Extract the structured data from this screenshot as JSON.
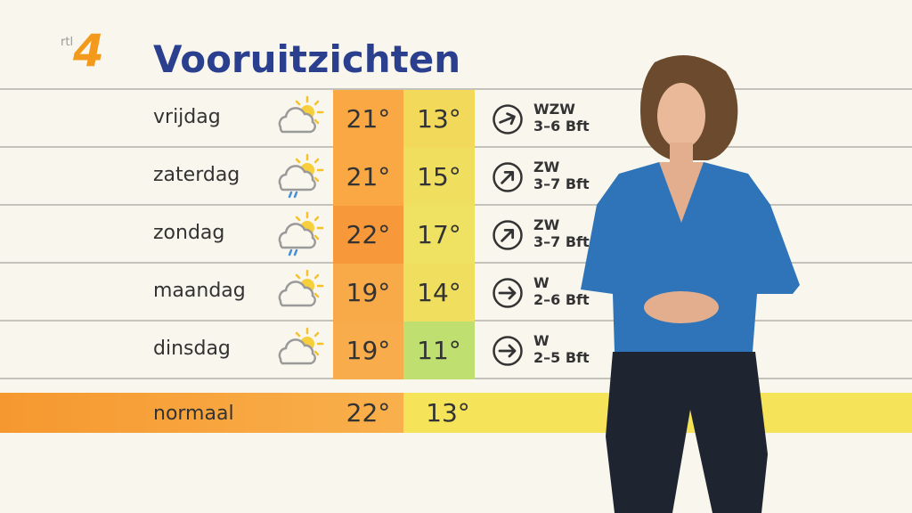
{
  "logo": {
    "text": "rtl",
    "number": "4"
  },
  "title": "Vooruitzichten",
  "forecast": [
    {
      "day": "vrijdag",
      "max": "21°",
      "min": "13°",
      "wind_direction": "WZW",
      "wind_force": "3–6 Bft"
    },
    {
      "day": "zaterdag",
      "max": "21°",
      "min": "15°",
      "wind_direction": "ZW",
      "wind_force": "3–7 Bft"
    },
    {
      "day": "zondag",
      "max": "22°",
      "min": "17°",
      "wind_direction": "ZW",
      "wind_force": "3–7 Bft"
    },
    {
      "day": "maandag",
      "max": "19°",
      "min": "14°",
      "wind_direction": "W",
      "wind_force": "2–6 Bft"
    },
    {
      "day": "dinsdag",
      "max": "19°",
      "min": "11°",
      "wind_direction": "W",
      "wind_force": "2–5 Bft"
    }
  ],
  "normal": {
    "label": "normaal",
    "max": "22°",
    "min": "13°"
  }
}
